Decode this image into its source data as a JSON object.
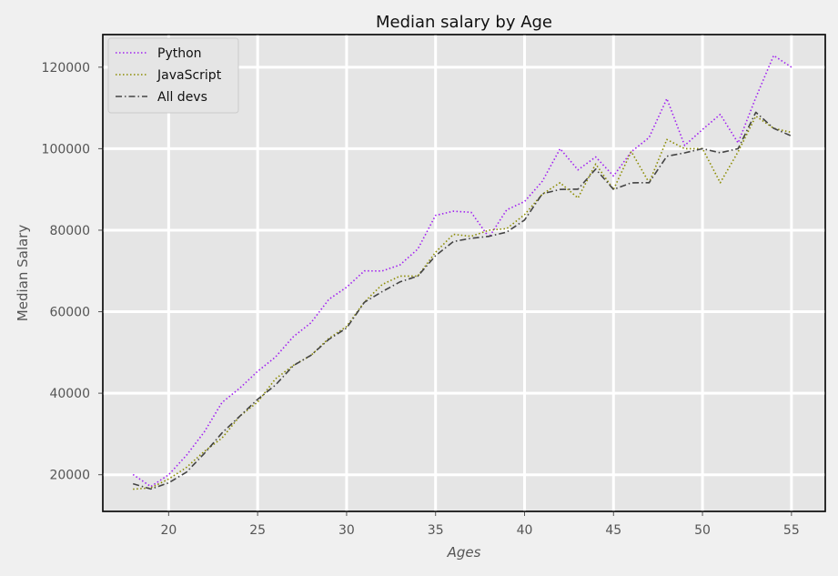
{
  "chart_data": {
    "type": "line",
    "title": "Median salary by Age",
    "xlabel": "Ages",
    "ylabel": "Median Salary",
    "xlim": [
      16.3,
      56.9
    ],
    "ylim": [
      11000,
      128000
    ],
    "xticks": [
      20,
      25,
      30,
      35,
      40,
      45,
      50,
      55
    ],
    "yticks": [
      20000,
      40000,
      60000,
      80000,
      100000,
      120000
    ],
    "grid": true,
    "legend_position": "top-left",
    "x": [
      18,
      19,
      20,
      21,
      22,
      23,
      24,
      25,
      26,
      27,
      28,
      29,
      30,
      31,
      32,
      33,
      34,
      35,
      36,
      37,
      38,
      39,
      40,
      41,
      42,
      43,
      44,
      45,
      46,
      47,
      48,
      49,
      50,
      51,
      52,
      53,
      54,
      55
    ],
    "series": [
      {
        "name": "Python",
        "color": "#a020f0",
        "linestyle": "dotted",
        "values": [
          20046,
          17100,
          20000,
          24744,
          30500,
          37732,
          41247,
          45372,
          48876,
          53850,
          57287,
          63016,
          65998,
          70003,
          70000,
          71496,
          75370,
          83640,
          84666,
          84392,
          78254,
          85000,
          87038,
          91991,
          100000,
          94796,
          97962,
          93302,
          99240,
          102736,
          112285,
          100771,
          104708,
          108423,
          101407,
          112542,
          122870,
          120000
        ]
      },
      {
        "name": "JavaScript",
        "color": "#8b8b00",
        "linestyle": "dotted",
        "values": [
          16446,
          16791,
          18942,
          21780,
          25704,
          29000,
          34372,
          37810,
          43515,
          46823,
          49293,
          53437,
          56373,
          62375,
          66674,
          68745,
          68746,
          74583,
          79000,
          78508,
          79996,
          80403,
          83820,
          88833,
          91660,
          87892,
          96243,
          90000,
          99313,
          91660,
          102264,
          100000,
          100000,
          91660,
          99240,
          108000,
          105000,
          104000
        ]
      },
      {
        "name": "All devs",
        "color": "#444444",
        "linestyle": "dashdot",
        "values": [
          17784,
          16500,
          18012,
          20628,
          25206,
          30252,
          34368,
          38496,
          42000,
          46752,
          49320,
          53200,
          56000,
          62316,
          64928,
          67317,
          68748,
          73752,
          77232,
          78000,
          78508,
          79536,
          82488,
          88935,
          90000,
          90056,
          95000,
          90000,
          91633,
          91660,
          98150,
          98964,
          100000,
          98988,
          100000,
          108923,
          105000,
          103117
        ]
      }
    ]
  }
}
